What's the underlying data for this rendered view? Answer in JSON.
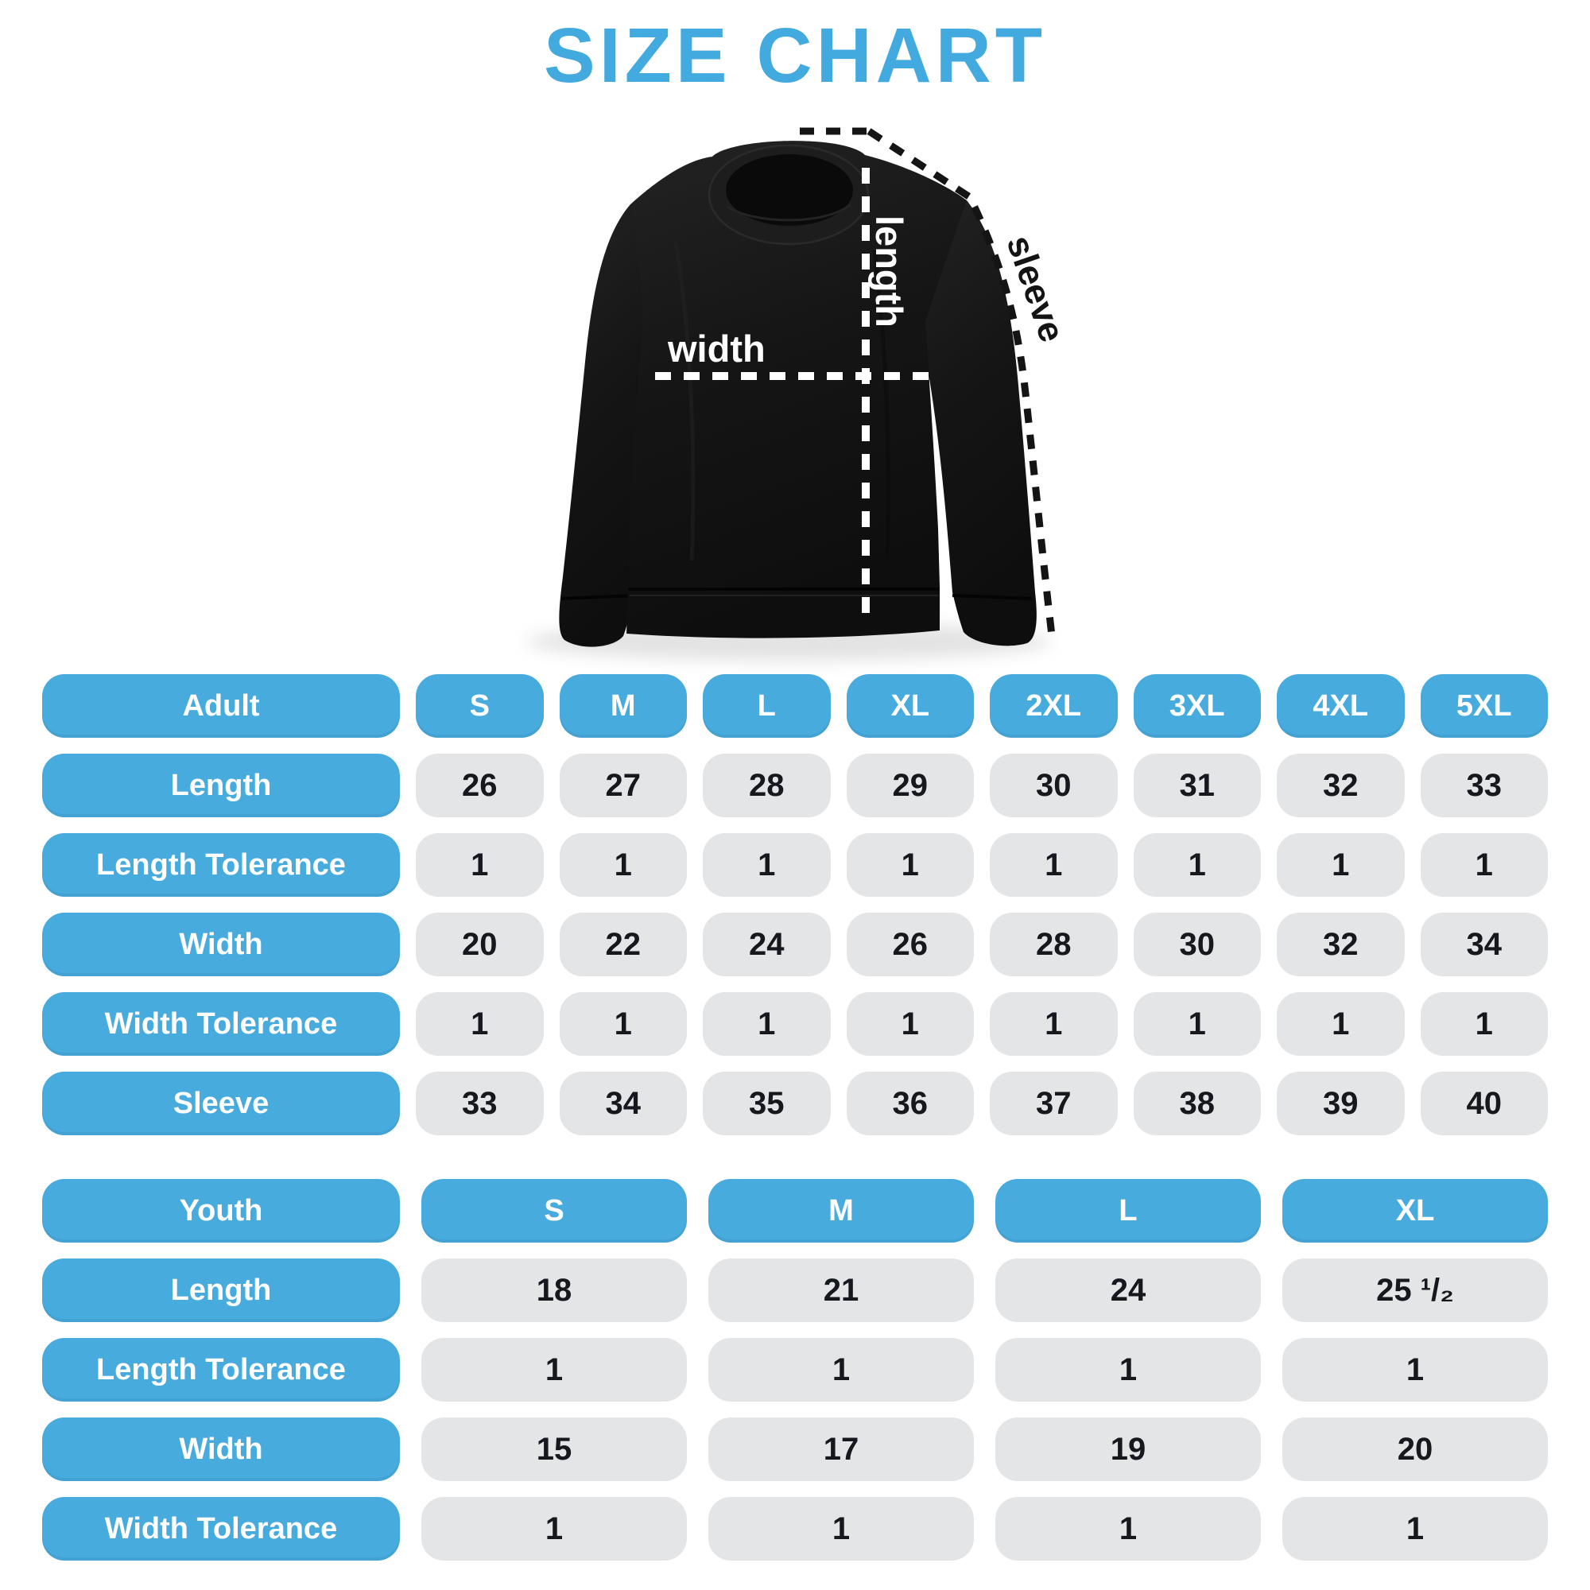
{
  "title": "SIZE CHART",
  "colors": {
    "accent_blue": "#48ABDE",
    "cell_gray": "#E4E5E7",
    "value_text": "#15181C",
    "garment_black": "#161616",
    "measure_line_white": "#FFFFFF",
    "measure_line_black": "#141414"
  },
  "diagram": {
    "length_label": "length",
    "width_label": "width",
    "sleeve_label": "sleeve"
  },
  "chart_data": [
    {
      "type": "table",
      "title": "Adult",
      "columns": [
        "S",
        "M",
        "L",
        "XL",
        "2XL",
        "3XL",
        "4XL",
        "5XL"
      ],
      "rows": [
        {
          "label": "Length",
          "values": [
            "26",
            "27",
            "28",
            "29",
            "30",
            "31",
            "32",
            "33"
          ]
        },
        {
          "label": "Length Tolerance",
          "values": [
            "1",
            "1",
            "1",
            "1",
            "1",
            "1",
            "1",
            "1"
          ]
        },
        {
          "label": "Width",
          "values": [
            "20",
            "22",
            "24",
            "26",
            "28",
            "30",
            "32",
            "34"
          ]
        },
        {
          "label": "Width Tolerance",
          "values": [
            "1",
            "1",
            "1",
            "1",
            "1",
            "1",
            "1",
            "1"
          ]
        },
        {
          "label": "Sleeve",
          "values": [
            "33",
            "34",
            "35",
            "36",
            "37",
            "38",
            "39",
            "40"
          ]
        }
      ]
    },
    {
      "type": "table",
      "title": "Youth",
      "columns": [
        "S",
        "M",
        "L",
        "XL"
      ],
      "rows": [
        {
          "label": "Length",
          "values": [
            "18",
            "21",
            "24",
            "25 ¹/₂"
          ]
        },
        {
          "label": "Length Tolerance",
          "values": [
            "1",
            "1",
            "1",
            "1"
          ]
        },
        {
          "label": "Width",
          "values": [
            "15",
            "17",
            "19",
            "20"
          ]
        },
        {
          "label": "Width Tolerance",
          "values": [
            "1",
            "1",
            "1",
            "1"
          ]
        }
      ]
    }
  ]
}
